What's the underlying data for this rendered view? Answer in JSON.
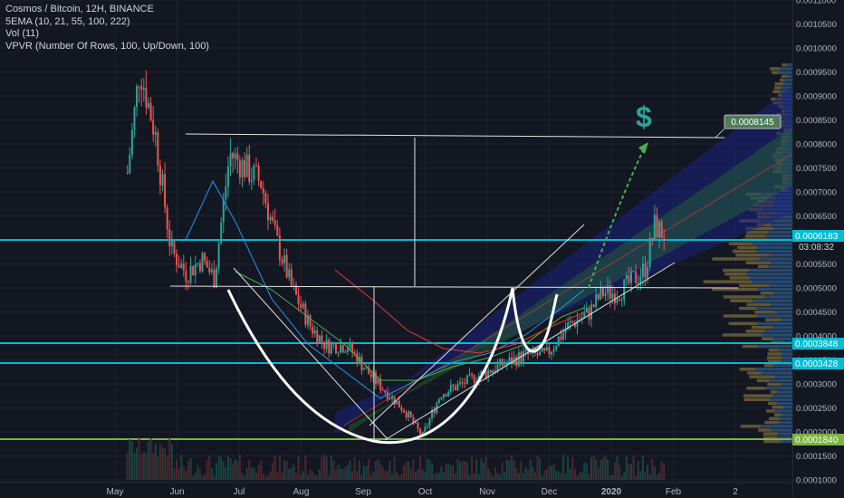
{
  "legend": {
    "title": "Cosmos / Bitcoin, 12H, BINANCE",
    "ema": "5EMA (10, 21, 55, 100, 222)",
    "vol": "Vol (11)",
    "vpvr": "VPVR (Number Of Rows, 100, Up/Down, 100)"
  },
  "annotation_symbol": "$",
  "colors": {
    "background": "#131722",
    "up": "#26a69a",
    "down": "#ef5350",
    "cyan_line": "#00bcd4",
    "green_line": "#7cb342",
    "arrow": "#4caf50",
    "drawing": "#e0e0e0"
  },
  "chart_data": {
    "type": "candlestick",
    "y_scale": "linear",
    "ylim": [
      0.0001,
      0.0011
    ],
    "y_ticks": [
      "0.0011000",
      "0.0010500",
      "0.0010000",
      "0.0009500",
      "0.0009000",
      "0.0008500",
      "0.0008000",
      "0.0007500",
      "0.0007000",
      "0.0006500",
      "0.0006000",
      "0.0005500",
      "0.0005000",
      "0.0004500",
      "0.0004000",
      "0.0003500",
      "0.0003000",
      "0.0002500",
      "0.0002000",
      "0.0001500",
      "0.0001000"
    ],
    "x_ticks": [
      "May",
      "Jun",
      "Jul",
      "Aug",
      "Sep",
      "Oct",
      "Nov",
      "Dec",
      "2020",
      "Feb",
      "2"
    ],
    "price_label": {
      "value": "0.0006183",
      "countdown": "03:08:32"
    },
    "target_label": "0.0008145",
    "level_labels": [
      "0.0003848",
      "0.0003428",
      "0.0001840"
    ],
    "price_path": [
      {
        "x": 0.4,
        "y": 0.00074
      },
      {
        "x": 0.8,
        "y": 0.00096
      },
      {
        "x": 1.3,
        "y": 0.00082
      },
      {
        "x": 1.8,
        "y": 0.00058
      },
      {
        "x": 2.3,
        "y": 0.00053
      },
      {
        "x": 2.8,
        "y": 0.00056
      },
      {
        "x": 3.2,
        "y": 0.00052
      },
      {
        "x": 3.7,
        "y": 0.00078
      },
      {
        "x": 4.2,
        "y": 0.00075
      },
      {
        "x": 4.7,
        "y": 0.00072
      },
      {
        "x": 5.2,
        "y": 0.0006
      },
      {
        "x": 5.7,
        "y": 0.0005
      },
      {
        "x": 6.3,
        "y": 0.00042
      },
      {
        "x": 6.8,
        "y": 0.00038
      },
      {
        "x": 7.5,
        "y": 0.00038
      },
      {
        "x": 8.2,
        "y": 0.00032
      },
      {
        "x": 8.8,
        "y": 0.00028
      },
      {
        "x": 9.4,
        "y": 0.00024
      },
      {
        "x": 9.9,
        "y": 0.00019
      },
      {
        "x": 10.5,
        "y": 0.00028
      },
      {
        "x": 11.2,
        "y": 0.0003
      },
      {
        "x": 11.8,
        "y": 0.00032
      },
      {
        "x": 12.5,
        "y": 0.00034
      },
      {
        "x": 13.2,
        "y": 0.00036
      },
      {
        "x": 13.9,
        "y": 0.00036
      },
      {
        "x": 14.6,
        "y": 0.00042
      },
      {
        "x": 15.3,
        "y": 0.00045
      },
      {
        "x": 15.7,
        "y": 0.00049
      },
      {
        "x": 16.2,
        "y": 0.00049
      },
      {
        "x": 16.6,
        "y": 0.00051
      },
      {
        "x": 17.1,
        "y": 0.00054
      },
      {
        "x": 17.4,
        "y": 0.00063
      },
      {
        "x": 17.7,
        "y": 0.00061
      }
    ]
  }
}
